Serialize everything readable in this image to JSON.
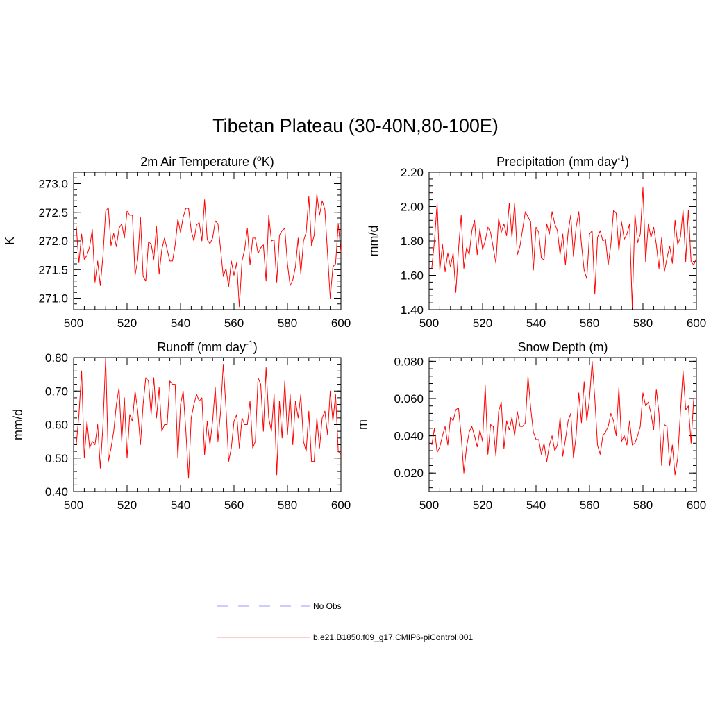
{
  "title": "Tibetan Plateau (30-40N,80-100E)",
  "colors": {
    "model_line": "#ff0000",
    "obs_line": "#9999ff",
    "axis": "#000000"
  },
  "legend": {
    "obs_label": "No Obs",
    "model_label": "b.e21.B1850.f09_g17.CMIP6-piControl.001"
  },
  "chart_data": [
    {
      "id": "temp",
      "type": "line",
      "title": "2m Air Temperature (",
      "title_sup": "o",
      "title_suffix": "K)",
      "ylabel": "K",
      "xlim": [
        500,
        600
      ],
      "ylim": [
        270.8,
        273.2
      ],
      "yticks": [
        271.0,
        271.5,
        272.0,
        272.5,
        273.0
      ],
      "ytick_labels": [
        "271.0",
        "271.5",
        "272.0",
        "272.5",
        "273.0"
      ],
      "yminor": 0.1,
      "xticks": [
        500,
        520,
        540,
        560,
        580,
        600
      ],
      "xtick_labels": [
        "500",
        "520",
        "540",
        "560",
        "580",
        "600"
      ],
      "series": [
        {
          "name": "b.e21.B1850.f09_g17.CMIP6-piControl.001",
          "x_start": 501,
          "values": [
            272.25,
            271.62,
            272.12,
            271.68,
            271.75,
            271.9,
            272.2,
            271.28,
            271.65,
            271.22,
            271.75,
            272.52,
            272.58,
            271.92,
            272.13,
            271.9,
            272.22,
            272.3,
            272.05,
            272.52,
            272.45,
            272.45,
            271.4,
            271.68,
            272.42,
            271.38,
            271.3,
            271.98,
            271.95,
            271.68,
            272.25,
            271.42,
            271.85,
            272.05,
            271.85,
            271.65,
            271.65,
            271.93,
            272.38,
            272.15,
            272.42,
            272.57,
            272.57,
            272.18,
            272.0,
            272.28,
            272.32,
            272.0,
            272.72,
            272.02,
            271.95,
            272.05,
            272.35,
            272.3,
            271.85,
            271.38,
            271.52,
            271.2,
            271.65,
            271.4,
            271.62,
            270.85,
            271.65,
            271.85,
            272.22,
            271.58,
            272.05,
            272.05,
            271.78,
            271.88,
            271.93,
            271.3,
            272.45,
            272.0,
            272.02,
            271.28,
            272.1,
            272.18,
            272.22,
            271.6,
            271.22,
            271.32,
            271.55,
            272.05,
            271.42,
            272.0,
            272.15,
            272.78,
            271.92,
            272.1,
            272.82,
            272.45,
            272.7,
            272.55,
            271.78,
            271.0,
            271.55,
            271.6,
            272.3,
            271.8
          ]
        }
      ]
    },
    {
      "id": "precip",
      "type": "line",
      "title": "Precipitation (mm day",
      "title_sup": "-1",
      "title_suffix": ")",
      "ylabel": "mm/d",
      "xlim": [
        500,
        600
      ],
      "ylim": [
        1.4,
        2.2
      ],
      "yticks": [
        1.4,
        1.6,
        1.8,
        2.0,
        2.2
      ],
      "ytick_labels": [
        "1.40",
        "1.60",
        "1.80",
        "2.00",
        "2.20"
      ],
      "yminor": 0.04,
      "xticks": [
        500,
        520,
        540,
        560,
        580,
        600
      ],
      "xtick_labels": [
        "500",
        "520",
        "540",
        "560",
        "580",
        "600"
      ],
      "series": [
        {
          "name": "b.e21.B1850.f09_g17.CMIP6-piControl.001",
          "x_start": 501,
          "values": [
            1.64,
            1.8,
            2.02,
            1.63,
            1.78,
            1.62,
            1.73,
            1.65,
            1.73,
            1.5,
            1.75,
            1.95,
            1.64,
            1.76,
            1.72,
            1.86,
            1.92,
            1.72,
            1.87,
            1.75,
            1.8,
            1.88,
            1.85,
            1.76,
            1.67,
            1.93,
            1.85,
            1.9,
            1.83,
            2.02,
            1.82,
            2.02,
            1.72,
            1.77,
            1.87,
            1.97,
            1.94,
            1.91,
            1.63,
            1.88,
            1.85,
            1.7,
            1.69,
            1.9,
            1.84,
            1.97,
            1.9,
            1.86,
            1.72,
            1.84,
            1.66,
            1.85,
            1.95,
            1.71,
            1.88,
            1.97,
            1.78,
            1.63,
            1.58,
            1.84,
            1.86,
            1.49,
            1.82,
            1.86,
            1.8,
            1.81,
            1.66,
            1.78,
            1.98,
            1.96,
            1.74,
            1.91,
            1.81,
            1.84,
            1.9,
            1.41,
            1.96,
            1.79,
            1.84,
            2.11,
            1.68,
            1.9,
            1.82,
            1.88,
            1.78,
            1.64,
            1.82,
            1.62,
            1.7,
            1.77,
            1.67,
            1.92,
            1.78,
            1.82,
            1.98,
            1.68,
            1.98,
            1.68,
            1.66,
            1.7
          ]
        }
      ]
    },
    {
      "id": "runoff",
      "type": "line",
      "title": "Runoff (mm day",
      "title_sup": "-1",
      "title_suffix": ")",
      "ylabel": "mm/d",
      "xlim": [
        500,
        600
      ],
      "ylim": [
        0.4,
        0.8
      ],
      "yticks": [
        0.4,
        0.5,
        0.6,
        0.7,
        0.8
      ],
      "ytick_labels": [
        "0.40",
        "0.50",
        "0.60",
        "0.70",
        "0.80"
      ],
      "yminor": 0.02,
      "xticks": [
        500,
        520,
        540,
        560,
        580,
        600
      ],
      "xtick_labels": [
        "500",
        "520",
        "540",
        "560",
        "580",
        "600"
      ],
      "series": [
        {
          "name": "b.e21.B1850.f09_g17.CMIP6-piControl.001",
          "x_start": 501,
          "values": [
            0.54,
            0.63,
            0.76,
            0.5,
            0.61,
            0.53,
            0.55,
            0.54,
            0.6,
            0.47,
            0.6,
            0.8,
            0.49,
            0.53,
            0.58,
            0.66,
            0.71,
            0.55,
            0.68,
            0.5,
            0.63,
            0.61,
            0.7,
            0.64,
            0.54,
            0.66,
            0.74,
            0.73,
            0.63,
            0.74,
            0.62,
            0.71,
            0.58,
            0.6,
            0.6,
            0.73,
            0.72,
            0.72,
            0.5,
            0.66,
            0.7,
            0.58,
            0.44,
            0.62,
            0.66,
            0.69,
            0.67,
            0.68,
            0.51,
            0.61,
            0.54,
            0.61,
            0.71,
            0.55,
            0.64,
            0.78,
            0.65,
            0.49,
            0.53,
            0.61,
            0.63,
            0.53,
            0.62,
            0.6,
            0.6,
            0.67,
            0.53,
            0.55,
            0.74,
            0.72,
            0.58,
            0.77,
            0.62,
            0.58,
            0.69,
            0.45,
            0.67,
            0.56,
            0.73,
            0.57,
            0.69,
            0.54,
            0.67,
            0.62,
            0.69,
            0.55,
            0.52,
            0.64,
            0.49,
            0.49,
            0.62,
            0.53,
            0.62,
            0.64,
            0.57,
            0.7,
            0.61,
            0.69,
            0.52,
            0.51
          ]
        }
      ]
    },
    {
      "id": "snow",
      "type": "line",
      "title": "Snow Depth (m)",
      "title_sup": "",
      "title_suffix": "",
      "ylabel": "m",
      "xlim": [
        500,
        600
      ],
      "ylim": [
        0.01,
        0.082
      ],
      "yticks": [
        0.02,
        0.04,
        0.06,
        0.08
      ],
      "ytick_labels": [
        "0.020",
        "0.040",
        "0.060",
        "0.080"
      ],
      "yminor": 0.004,
      "xticks": [
        500,
        520,
        540,
        560,
        580,
        600
      ],
      "xtick_labels": [
        "500",
        "520",
        "540",
        "560",
        "580",
        "600"
      ],
      "series": [
        {
          "name": "b.e21.B1850.f09_g17.CMIP6-piControl.001",
          "x_start": 501,
          "values": [
            0.035,
            0.044,
            0.031,
            0.034,
            0.04,
            0.045,
            0.035,
            0.05,
            0.048,
            0.054,
            0.055,
            0.04,
            0.02,
            0.034,
            0.042,
            0.045,
            0.04,
            0.034,
            0.043,
            0.037,
            0.067,
            0.03,
            0.046,
            0.045,
            0.029,
            0.053,
            0.058,
            0.033,
            0.048,
            0.043,
            0.05,
            0.04,
            0.053,
            0.045,
            0.045,
            0.047,
            0.072,
            0.055,
            0.042,
            0.038,
            0.038,
            0.03,
            0.036,
            0.026,
            0.035,
            0.04,
            0.032,
            0.035,
            0.05,
            0.029,
            0.038,
            0.048,
            0.052,
            0.028,
            0.04,
            0.063,
            0.047,
            0.069,
            0.048,
            0.06,
            0.08,
            0.06,
            0.035,
            0.03,
            0.04,
            0.042,
            0.045,
            0.052,
            0.048,
            0.04,
            0.066,
            0.037,
            0.04,
            0.035,
            0.048,
            0.035,
            0.036,
            0.04,
            0.045,
            0.063,
            0.056,
            0.058,
            0.052,
            0.043,
            0.065,
            0.052,
            0.024,
            0.046,
            0.045,
            0.024,
            0.035,
            0.019,
            0.028,
            0.052,
            0.075,
            0.054,
            0.056,
            0.036,
            0.06,
            0.06
          ]
        }
      ]
    }
  ]
}
